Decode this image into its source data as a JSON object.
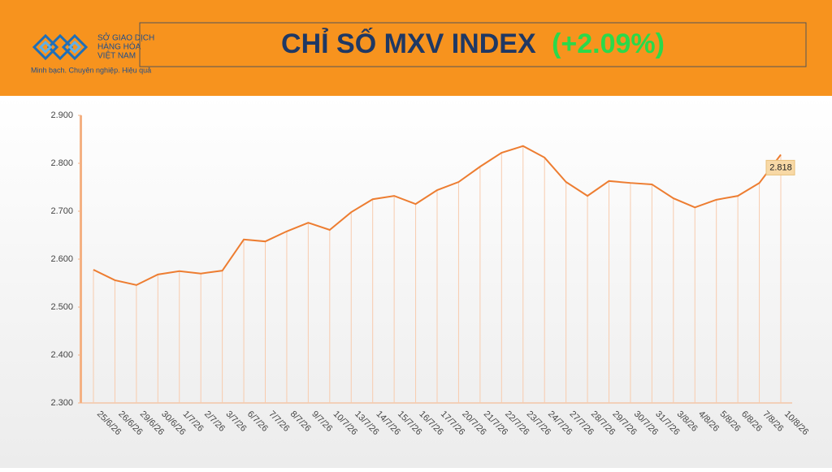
{
  "header": {
    "logo_lines": [
      "SỞ GIAO DỊCH",
      "HÀNG HÓA",
      "VIỆT NAM"
    ],
    "slogan": "Minh bạch. Chuyên nghiệp. Hiệu quả",
    "title": "CHỈ SỐ MXV INDEX",
    "change": "(+2.09%)"
  },
  "chart_data": {
    "type": "line",
    "categories": [
      "25/6/26",
      "26/6/26",
      "29/6/26",
      "30/6/26",
      "1/7/26",
      "2/7/26",
      "3/7/26",
      "6/7/26",
      "7/7/26",
      "8/7/26",
      "9/7/26",
      "10/7/26",
      "13/7/26",
      "14/7/26",
      "15/7/26",
      "16/7/26",
      "17/7/26",
      "20/7/26",
      "21/7/26",
      "22/7/26",
      "23/7/26",
      "24/7/26",
      "27/7/26",
      "28/7/26",
      "29/7/26",
      "30/7/26",
      "31/7/26",
      "3/8/26",
      "4/8/26",
      "5/8/26",
      "6/8/26",
      "7/8/26",
      "10/8/26"
    ],
    "values": [
      2.578,
      2.556,
      2.546,
      2.568,
      2.575,
      2.57,
      2.576,
      2.641,
      2.637,
      2.658,
      2.676,
      2.661,
      2.698,
      2.725,
      2.732,
      2.715,
      2.744,
      2.761,
      2.793,
      2.822,
      2.836,
      2.812,
      2.761,
      2.732,
      2.763,
      2.759,
      2.756,
      2.727,
      2.708,
      2.724,
      2.732,
      2.759,
      2.818
    ],
    "color": "#ed7d31",
    "ylim": [
      2.3,
      2.9
    ],
    "yticks": [
      {
        "value": 2.3,
        "label": "2.300"
      },
      {
        "value": 2.4,
        "label": "2.400"
      },
      {
        "value": 2.5,
        "label": "2.500"
      },
      {
        "value": 2.6,
        "label": "2.600"
      },
      {
        "value": 2.7,
        "label": "2.700"
      },
      {
        "value": 2.8,
        "label": "2.800"
      },
      {
        "value": 2.9,
        "label": "2.900"
      }
    ]
  }
}
